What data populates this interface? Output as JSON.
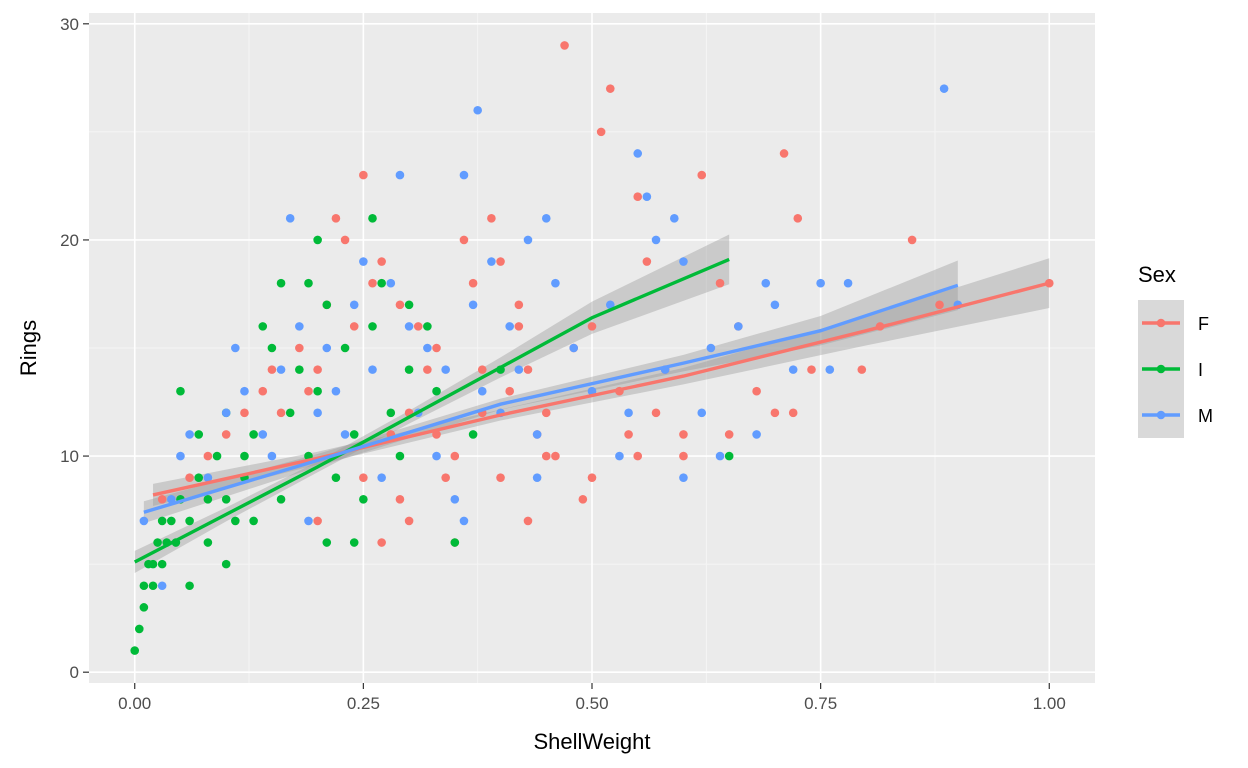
{
  "chart_data": {
    "type": "scatter",
    "title": "",
    "xlabel": "ShellWeight",
    "ylabel": "Rings",
    "xlim": [
      -0.05,
      1.05
    ],
    "ylim": [
      -0.5,
      30.5
    ],
    "x_ticks": [
      0,
      0.25,
      0.5,
      0.75,
      1.0
    ],
    "x_tick_labels": [
      "0.00",
      "0.25",
      "0.50",
      "0.75",
      "1.00"
    ],
    "y_ticks": [
      0,
      10,
      20,
      30
    ],
    "y_tick_labels": [
      "0",
      "10",
      "20",
      "30"
    ],
    "grid": true,
    "legend": {
      "title": "Sex",
      "position": "right"
    },
    "series": [
      {
        "name": "F",
        "color": "#F8766D",
        "points": [
          [
            0.03,
            8
          ],
          [
            0.06,
            9
          ],
          [
            0.08,
            10
          ],
          [
            0.1,
            11
          ],
          [
            0.12,
            12
          ],
          [
            0.14,
            13
          ],
          [
            0.15,
            14
          ],
          [
            0.16,
            12
          ],
          [
            0.18,
            15
          ],
          [
            0.19,
            13
          ],
          [
            0.2,
            14
          ],
          [
            0.21,
            17
          ],
          [
            0.22,
            21
          ],
          [
            0.23,
            20
          ],
          [
            0.24,
            16
          ],
          [
            0.25,
            23
          ],
          [
            0.26,
            18
          ],
          [
            0.27,
            19
          ],
          [
            0.28,
            11
          ],
          [
            0.29,
            17
          ],
          [
            0.3,
            12
          ],
          [
            0.31,
            16
          ],
          [
            0.32,
            14
          ],
          [
            0.33,
            15
          ],
          [
            0.34,
            9
          ],
          [
            0.35,
            10
          ],
          [
            0.36,
            20
          ],
          [
            0.37,
            18
          ],
          [
            0.38,
            12
          ],
          [
            0.39,
            21
          ],
          [
            0.4,
            19
          ],
          [
            0.41,
            13
          ],
          [
            0.42,
            17
          ],
          [
            0.43,
            14
          ],
          [
            0.44,
            11
          ],
          [
            0.45,
            12
          ],
          [
            0.46,
            10
          ],
          [
            0.47,
            29
          ],
          [
            0.48,
            15
          ],
          [
            0.49,
            8
          ],
          [
            0.5,
            16
          ],
          [
            0.51,
            25
          ],
          [
            0.52,
            27
          ],
          [
            0.53,
            13
          ],
          [
            0.54,
            11
          ],
          [
            0.55,
            22
          ],
          [
            0.56,
            19
          ],
          [
            0.57,
            12
          ],
          [
            0.58,
            14
          ],
          [
            0.6,
            10
          ],
          [
            0.62,
            23
          ],
          [
            0.64,
            18
          ],
          [
            0.66,
            16
          ],
          [
            0.68,
            13
          ],
          [
            0.71,
            24
          ],
          [
            0.72,
            12
          ],
          [
            0.725,
            21
          ],
          [
            0.74,
            14
          ],
          [
            0.795,
            14
          ],
          [
            0.815,
            16
          ],
          [
            0.85,
            20
          ],
          [
            0.88,
            17
          ],
          [
            1.0,
            18
          ],
          [
            0.3,
            7
          ],
          [
            0.35,
            6
          ],
          [
            0.43,
            7
          ],
          [
            0.27,
            6
          ],
          [
            0.2,
            7
          ],
          [
            0.25,
            9
          ],
          [
            0.4,
            9
          ],
          [
            0.45,
            10
          ],
          [
            0.5,
            9
          ],
          [
            0.55,
            10
          ],
          [
            0.6,
            11
          ],
          [
            0.65,
            11
          ],
          [
            0.7,
            12
          ],
          [
            0.38,
            14
          ],
          [
            0.42,
            16
          ],
          [
            0.33,
            11
          ],
          [
            0.29,
            8
          ]
        ],
        "trend": [
          [
            0.02,
            8.2
          ],
          [
            0.2,
            9.9
          ],
          [
            0.4,
            11.9
          ],
          [
            0.6,
            13.7
          ],
          [
            0.8,
            15.8
          ],
          [
            1.0,
            18.0
          ]
        ]
      },
      {
        "name": "I",
        "color": "#00BA38",
        "points": [
          [
            0.0,
            1
          ],
          [
            0.005,
            2
          ],
          [
            0.01,
            3
          ],
          [
            0.01,
            4
          ],
          [
            0.015,
            5
          ],
          [
            0.02,
            4
          ],
          [
            0.02,
            5
          ],
          [
            0.025,
            6
          ],
          [
            0.03,
            5
          ],
          [
            0.035,
            6
          ],
          [
            0.04,
            7
          ],
          [
            0.045,
            6
          ],
          [
            0.05,
            8
          ],
          [
            0.05,
            13
          ],
          [
            0.06,
            7
          ],
          [
            0.07,
            9
          ],
          [
            0.07,
            11
          ],
          [
            0.08,
            8
          ],
          [
            0.08,
            6
          ],
          [
            0.09,
            10
          ],
          [
            0.1,
            5
          ],
          [
            0.1,
            12
          ],
          [
            0.11,
            7
          ],
          [
            0.12,
            9
          ],
          [
            0.13,
            11
          ],
          [
            0.14,
            16
          ],
          [
            0.15,
            15
          ],
          [
            0.16,
            8
          ],
          [
            0.17,
            12
          ],
          [
            0.18,
            14
          ],
          [
            0.19,
            10
          ],
          [
            0.2,
            13
          ],
          [
            0.2,
            20
          ],
          [
            0.21,
            17
          ],
          [
            0.22,
            9
          ],
          [
            0.23,
            15
          ],
          [
            0.24,
            11
          ],
          [
            0.26,
            21
          ],
          [
            0.27,
            18
          ],
          [
            0.28,
            12
          ],
          [
            0.3,
            14
          ],
          [
            0.32,
            16
          ],
          [
            0.35,
            6
          ],
          [
            0.24,
            6
          ],
          [
            0.29,
            10
          ],
          [
            0.33,
            13
          ],
          [
            0.37,
            11
          ],
          [
            0.4,
            14
          ],
          [
            0.25,
            8
          ],
          [
            0.19,
            18
          ],
          [
            0.16,
            18
          ],
          [
            0.13,
            7
          ],
          [
            0.65,
            10
          ],
          [
            0.06,
            4
          ],
          [
            0.03,
            7
          ],
          [
            0.1,
            8
          ],
          [
            0.21,
            6
          ],
          [
            0.26,
            16
          ],
          [
            0.3,
            17
          ],
          [
            0.12,
            10
          ]
        ],
        "trend": [
          [
            0.0,
            5.1
          ],
          [
            0.1,
            7.3
          ],
          [
            0.2,
            9.5
          ],
          [
            0.3,
            11.8
          ],
          [
            0.4,
            14.1
          ],
          [
            0.5,
            16.4
          ],
          [
            0.65,
            19.1
          ]
        ]
      },
      {
        "name": "M",
        "color": "#619CFF",
        "points": [
          [
            0.01,
            7
          ],
          [
            0.03,
            4
          ],
          [
            0.04,
            8
          ],
          [
            0.05,
            10
          ],
          [
            0.06,
            11
          ],
          [
            0.08,
            9
          ],
          [
            0.1,
            12
          ],
          [
            0.11,
            15
          ],
          [
            0.12,
            13
          ],
          [
            0.14,
            11
          ],
          [
            0.15,
            10
          ],
          [
            0.16,
            14
          ],
          [
            0.17,
            21
          ],
          [
            0.18,
            16
          ],
          [
            0.19,
            7
          ],
          [
            0.2,
            12
          ],
          [
            0.21,
            15
          ],
          [
            0.22,
            13
          ],
          [
            0.23,
            11
          ],
          [
            0.24,
            17
          ],
          [
            0.25,
            19
          ],
          [
            0.26,
            14
          ],
          [
            0.27,
            9
          ],
          [
            0.28,
            18
          ],
          [
            0.29,
            23
          ],
          [
            0.3,
            16
          ],
          [
            0.31,
            12
          ],
          [
            0.32,
            15
          ],
          [
            0.33,
            10
          ],
          [
            0.34,
            14
          ],
          [
            0.35,
            8
          ],
          [
            0.36,
            23
          ],
          [
            0.37,
            17
          ],
          [
            0.375,
            26
          ],
          [
            0.38,
            13
          ],
          [
            0.39,
            19
          ],
          [
            0.4,
            12
          ],
          [
            0.41,
            16
          ],
          [
            0.42,
            14
          ],
          [
            0.43,
            20
          ],
          [
            0.44,
            11
          ],
          [
            0.45,
            21
          ],
          [
            0.46,
            18
          ],
          [
            0.48,
            15
          ],
          [
            0.5,
            13
          ],
          [
            0.52,
            17
          ],
          [
            0.54,
            12
          ],
          [
            0.55,
            24
          ],
          [
            0.56,
            22
          ],
          [
            0.57,
            20
          ],
          [
            0.58,
            14
          ],
          [
            0.6,
            19
          ],
          [
            0.62,
            12
          ],
          [
            0.63,
            15
          ],
          [
            0.66,
            16
          ],
          [
            0.68,
            11
          ],
          [
            0.69,
            18
          ],
          [
            0.7,
            17
          ],
          [
            0.72,
            14
          ],
          [
            0.75,
            18
          ],
          [
            0.76,
            14
          ],
          [
            0.78,
            18
          ],
          [
            0.885,
            27
          ],
          [
            0.9,
            17
          ],
          [
            0.59,
            21
          ],
          [
            0.36,
            7
          ],
          [
            0.44,
            9
          ],
          [
            0.53,
            10
          ],
          [
            0.6,
            9
          ],
          [
            0.64,
            10
          ]
        ],
        "trend": [
          [
            0.01,
            7.4
          ],
          [
            0.2,
            9.8
          ],
          [
            0.4,
            12.4
          ],
          [
            0.6,
            14.3
          ],
          [
            0.75,
            15.8
          ],
          [
            0.9,
            17.9
          ]
        ]
      }
    ]
  }
}
